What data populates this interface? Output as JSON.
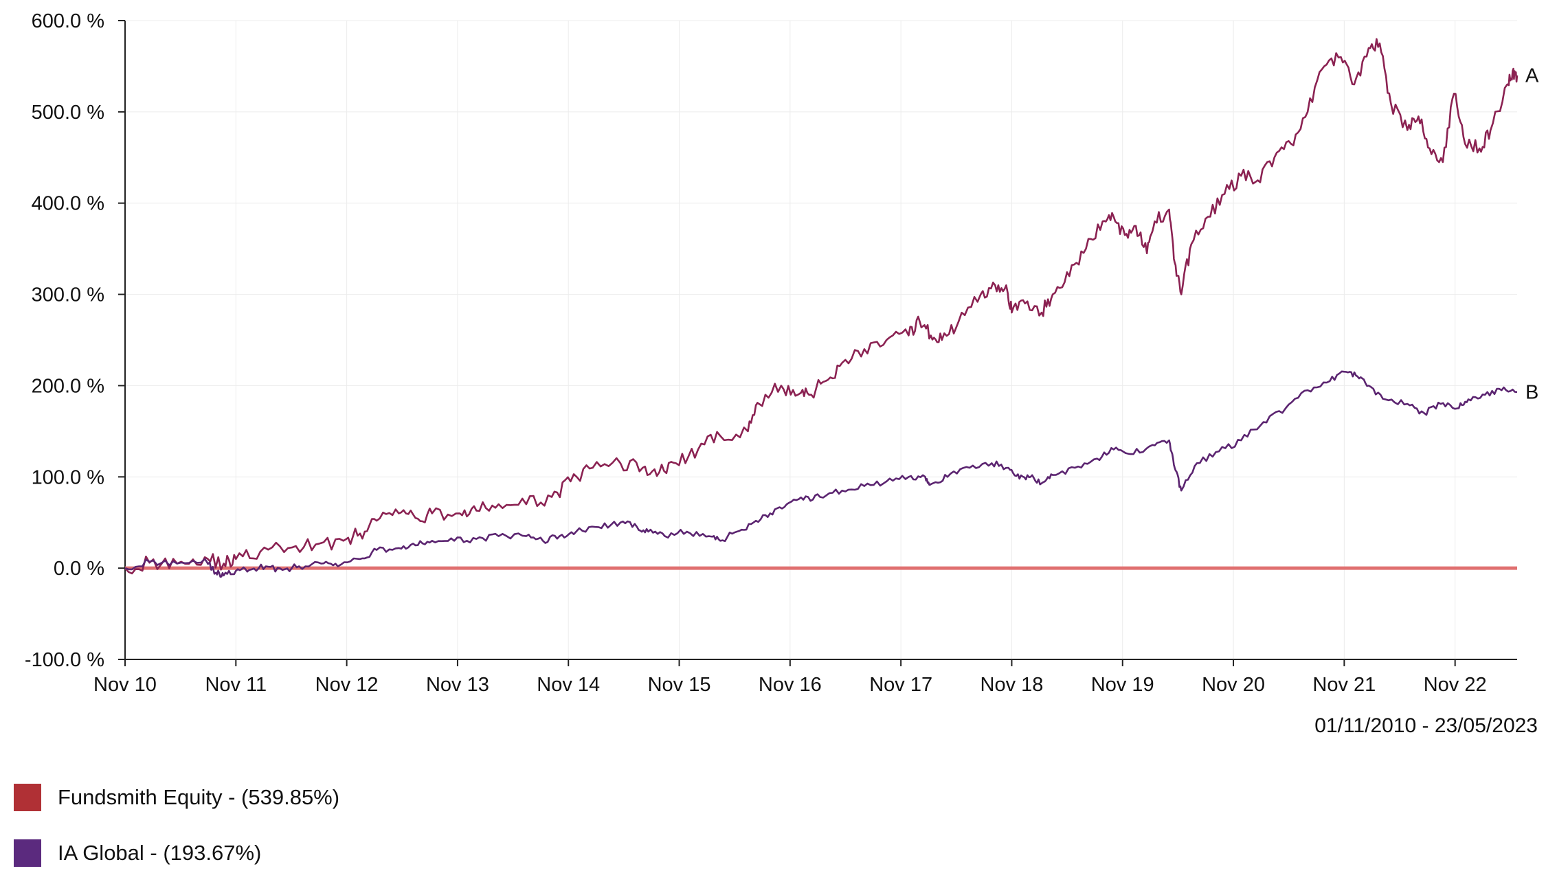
{
  "chart_data": {
    "type": "line",
    "date_range": "01/11/2010 - 23/05/2023",
    "ylim": [
      -100,
      600
    ],
    "y_ticks": [
      {
        "value": -100,
        "label": "-100.0 %"
      },
      {
        "value": 0,
        "label": "0.0 %"
      },
      {
        "value": 100,
        "label": "100.0 %"
      },
      {
        "value": 200,
        "label": "200.0 %"
      },
      {
        "value": 300,
        "label": "300.0 %"
      },
      {
        "value": 400,
        "label": "400.0 %"
      },
      {
        "value": 500,
        "label": "500.0 %"
      },
      {
        "value": 600,
        "label": "600.0 %"
      }
    ],
    "x_range": [
      2010.83,
      2023.39
    ],
    "x_ticks": [
      {
        "value": 2010.83,
        "label": "Nov 10"
      },
      {
        "value": 2011.83,
        "label": "Nov 11"
      },
      {
        "value": 2012.83,
        "label": "Nov 12"
      },
      {
        "value": 2013.83,
        "label": "Nov 13"
      },
      {
        "value": 2014.83,
        "label": "Nov 14"
      },
      {
        "value": 2015.83,
        "label": "Nov 15"
      },
      {
        "value": 2016.83,
        "label": "Nov 16"
      },
      {
        "value": 2017.83,
        "label": "Nov 17"
      },
      {
        "value": 2018.83,
        "label": "Nov 18"
      },
      {
        "value": 2019.83,
        "label": "Nov 19"
      },
      {
        "value": 2020.83,
        "label": "Nov 20"
      },
      {
        "value": 2021.83,
        "label": "Nov 21"
      },
      {
        "value": 2022.83,
        "label": "Nov 22"
      }
    ],
    "baseline": {
      "value": 0,
      "color": "#e07070"
    },
    "series": [
      {
        "tag": "A",
        "name": "Fundsmith Equity - (539.85%)",
        "color": "#8b2252",
        "legend_color": "#b03035",
        "points": [
          [
            2010.83,
            0
          ],
          [
            2011.05,
            6
          ],
          [
            2011.3,
            5
          ],
          [
            2011.55,
            12
          ],
          [
            2011.72,
            5
          ],
          [
            2011.83,
            10
          ],
          [
            2012.05,
            18
          ],
          [
            2012.3,
            22
          ],
          [
            2012.55,
            26
          ],
          [
            2012.8,
            30
          ],
          [
            2012.95,
            38
          ],
          [
            2013.1,
            52
          ],
          [
            2013.3,
            60
          ],
          [
            2013.45,
            55
          ],
          [
            2013.6,
            60
          ],
          [
            2013.85,
            60
          ],
          [
            2014.0,
            63
          ],
          [
            2014.2,
            70
          ],
          [
            2014.45,
            70
          ],
          [
            2014.68,
            78
          ],
          [
            2014.85,
            95
          ],
          [
            2015.05,
            110
          ],
          [
            2015.3,
            115
          ],
          [
            2015.5,
            110
          ],
          [
            2015.65,
            105
          ],
          [
            2015.8,
            115
          ],
          [
            2016.0,
            130
          ],
          [
            2016.2,
            145
          ],
          [
            2016.45,
            150
          ],
          [
            2016.55,
            180
          ],
          [
            2016.75,
            200
          ],
          [
            2016.9,
            190
          ],
          [
            2017.0,
            190
          ],
          [
            2017.15,
            205
          ],
          [
            2017.3,
            225
          ],
          [
            2017.5,
            240
          ],
          [
            2017.7,
            250
          ],
          [
            2017.9,
            255
          ],
          [
            2018.0,
            270
          ],
          [
            2018.1,
            255
          ],
          [
            2018.2,
            250
          ],
          [
            2018.35,
            270
          ],
          [
            2018.55,
            300
          ],
          [
            2018.68,
            310
          ],
          [
            2018.78,
            310
          ],
          [
            2018.83,
            280
          ],
          [
            2018.95,
            290
          ],
          [
            2019.1,
            280
          ],
          [
            2019.2,
            300
          ],
          [
            2019.35,
            320
          ],
          [
            2019.5,
            350
          ],
          [
            2019.65,
            380
          ],
          [
            2019.75,
            385
          ],
          [
            2019.85,
            365
          ],
          [
            2019.95,
            375
          ],
          [
            2020.05,
            345
          ],
          [
            2020.12,
            380
          ],
          [
            2020.25,
            393
          ],
          [
            2020.3,
            335
          ],
          [
            2020.36,
            300
          ],
          [
            2020.45,
            355
          ],
          [
            2020.6,
            385
          ],
          [
            2020.75,
            410
          ],
          [
            2020.9,
            430
          ],
          [
            2021.05,
            425
          ],
          [
            2021.2,
            450
          ],
          [
            2021.35,
            465
          ],
          [
            2021.5,
            500
          ],
          [
            2021.65,
            550
          ],
          [
            2021.8,
            560
          ],
          [
            2021.92,
            530
          ],
          [
            2022.05,
            570
          ],
          [
            2022.15,
            575
          ],
          [
            2022.25,
            510
          ],
          [
            2022.4,
            480
          ],
          [
            2022.5,
            495
          ],
          [
            2022.6,
            460
          ],
          [
            2022.72,
            445
          ],
          [
            2022.82,
            520
          ],
          [
            2022.92,
            465
          ],
          [
            2023.05,
            460
          ],
          [
            2023.15,
            480
          ],
          [
            2023.3,
            530
          ],
          [
            2023.35,
            545
          ],
          [
            2023.39,
            540
          ]
        ]
      },
      {
        "tag": "B",
        "name": "IA Global - (193.67%)",
        "color": "#5b2470",
        "legend_color": "#5b2a7e",
        "points": [
          [
            2010.83,
            0
          ],
          [
            2011.05,
            7
          ],
          [
            2011.3,
            5
          ],
          [
            2011.55,
            10
          ],
          [
            2011.65,
            -5
          ],
          [
            2011.72,
            -8
          ],
          [
            2011.83,
            -3
          ],
          [
            2011.95,
            -2
          ],
          [
            2012.1,
            2
          ],
          [
            2012.25,
            -2
          ],
          [
            2012.4,
            2
          ],
          [
            2012.6,
            5
          ],
          [
            2012.75,
            2
          ],
          [
            2012.95,
            10
          ],
          [
            2013.1,
            20
          ],
          [
            2013.3,
            22
          ],
          [
            2013.45,
            25
          ],
          [
            2013.6,
            30
          ],
          [
            2013.8,
            30
          ],
          [
            2014.0,
            32
          ],
          [
            2014.2,
            35
          ],
          [
            2014.45,
            35
          ],
          [
            2014.6,
            30
          ],
          [
            2014.75,
            35
          ],
          [
            2014.9,
            40
          ],
          [
            2015.1,
            45
          ],
          [
            2015.3,
            50
          ],
          [
            2015.45,
            45
          ],
          [
            2015.55,
            40
          ],
          [
            2015.7,
            35
          ],
          [
            2015.9,
            40
          ],
          [
            2016.1,
            35
          ],
          [
            2016.2,
            30
          ],
          [
            2016.35,
            40
          ],
          [
            2016.5,
            50
          ],
          [
            2016.65,
            60
          ],
          [
            2016.8,
            70
          ],
          [
            2016.95,
            75
          ],
          [
            2017.1,
            78
          ],
          [
            2017.3,
            85
          ],
          [
            2017.5,
            90
          ],
          [
            2017.7,
            95
          ],
          [
            2017.9,
            100
          ],
          [
            2018.05,
            100
          ],
          [
            2018.1,
            92
          ],
          [
            2018.25,
            100
          ],
          [
            2018.45,
            110
          ],
          [
            2018.65,
            115
          ],
          [
            2018.8,
            110
          ],
          [
            2018.9,
            98
          ],
          [
            2019.0,
            100
          ],
          [
            2019.1,
            93
          ],
          [
            2019.2,
            102
          ],
          [
            2019.4,
            110
          ],
          [
            2019.6,
            120
          ],
          [
            2019.75,
            130
          ],
          [
            2019.9,
            125
          ],
          [
            2020.1,
            135
          ],
          [
            2020.25,
            140
          ],
          [
            2020.3,
            110
          ],
          [
            2020.36,
            85
          ],
          [
            2020.5,
            115
          ],
          [
            2020.7,
            128
          ],
          [
            2020.9,
            140
          ],
          [
            2021.1,
            160
          ],
          [
            2021.3,
            175
          ],
          [
            2021.5,
            195
          ],
          [
            2021.7,
            205
          ],
          [
            2021.85,
            215
          ],
          [
            2021.95,
            210
          ],
          [
            2022.05,
            200
          ],
          [
            2022.2,
            185
          ],
          [
            2022.4,
            180
          ],
          [
            2022.55,
            170
          ],
          [
            2022.7,
            180
          ],
          [
            2022.85,
            175
          ],
          [
            2022.95,
            185
          ],
          [
            2023.1,
            190
          ],
          [
            2023.25,
            195
          ],
          [
            2023.39,
            193
          ]
        ]
      }
    ]
  },
  "legend": {
    "items": [
      {
        "label": "Fundsmith Equity - (539.85%)",
        "color": "#b03035"
      },
      {
        "label": "IA Global - (193.67%)",
        "color": "#5b2a7e"
      }
    ]
  }
}
